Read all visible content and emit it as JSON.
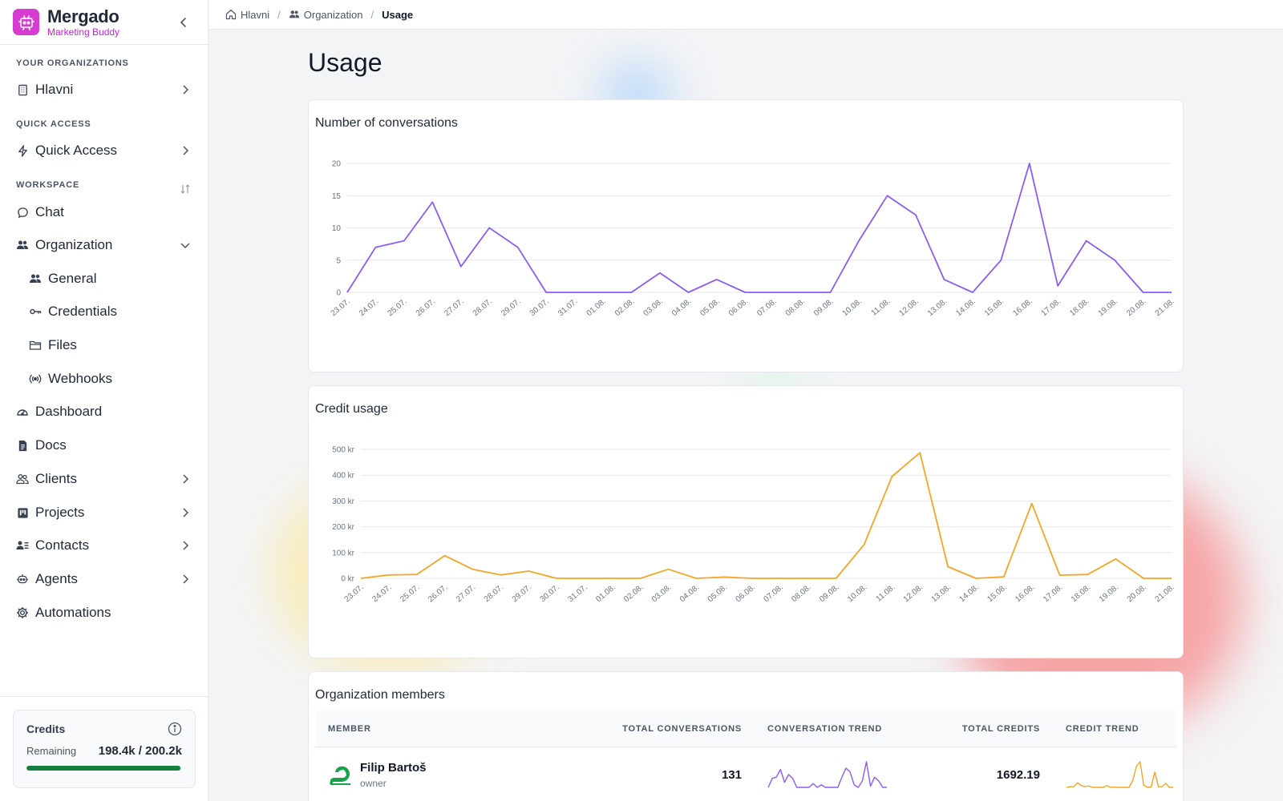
{
  "brand": {
    "name": "Mergado",
    "subtitle": "Marketing Buddy"
  },
  "sidebar": {
    "sections": {
      "organizations": "YOUR ORGANIZATIONS",
      "quick_access": "QUICK ACCESS",
      "workspace": "WORKSPACE"
    },
    "items": {
      "hlavni": "Hlavni",
      "quick_access": "Quick Access",
      "chat": "Chat",
      "organization": "Organization",
      "general": "General",
      "credentials": "Credentials",
      "files": "Files",
      "webhooks": "Webhooks",
      "dashboard": "Dashboard",
      "docs": "Docs",
      "clients": "Clients",
      "projects": "Projects",
      "contacts": "Contacts",
      "agents": "Agents",
      "automations": "Automations"
    },
    "credits": {
      "title": "Credits",
      "remaining_label": "Remaining",
      "remaining_value": "198.4k / 200.2k",
      "fraction": 0.991
    }
  },
  "breadcrumb": [
    "Hlavni",
    "Organization",
    "Usage"
  ],
  "page": {
    "title": "Usage"
  },
  "colors": {
    "accent": "#d63ccf",
    "conversations": "#8b5cf6",
    "credits": "#f5a524",
    "progress": "#15803d"
  },
  "chart_data": [
    {
      "type": "line",
      "title": "Number of conversations",
      "categories": [
        "23.07.",
        "24.07.",
        "25.07.",
        "26.07.",
        "27.07.",
        "28.07.",
        "29.07.",
        "30.07.",
        "31.07.",
        "01.08.",
        "02.08.",
        "03.08.",
        "04.08.",
        "05.08.",
        "06.08.",
        "07.08.",
        "08.08.",
        "09.08.",
        "10.08.",
        "11.08.",
        "12.08.",
        "13.08.",
        "14.08.",
        "15.08.",
        "16.08.",
        "17.08.",
        "18.08.",
        "19.08.",
        "20.08.",
        "21.08."
      ],
      "values": [
        0,
        7,
        8,
        14,
        4,
        10,
        7,
        0,
        0,
        0,
        0,
        3,
        0,
        2,
        0,
        0,
        0,
        0,
        8,
        15,
        12,
        2,
        0,
        5,
        20,
        1,
        8,
        5,
        0,
        0
      ],
      "ylim": [
        0,
        20
      ],
      "yticks": [
        {
          "v": 0,
          "label": "0"
        },
        {
          "v": 5,
          "label": "5"
        },
        {
          "v": 10,
          "label": "10"
        },
        {
          "v": 15,
          "label": "15"
        },
        {
          "v": 20,
          "label": "20"
        }
      ],
      "grid": true
    },
    {
      "type": "line",
      "title": "Credit usage",
      "categories": [
        "23.07.",
        "24.07.",
        "25.07.",
        "26.07.",
        "27.07.",
        "28.07.",
        "29.07.",
        "30.07.",
        "31.07.",
        "01.08.",
        "02.08.",
        "03.08.",
        "04.08.",
        "05.08.",
        "06.08.",
        "07.08.",
        "08.08.",
        "09.08.",
        "10.08.",
        "11.08.",
        "12.08.",
        "13.08.",
        "14.08.",
        "15.08.",
        "16.08.",
        "17.08.",
        "18.08.",
        "19.08.",
        "20.08.",
        "21.08."
      ],
      "values": [
        0,
        13,
        15,
        88,
        35,
        13,
        28,
        0,
        0,
        0,
        0,
        35,
        0,
        5,
        0,
        0,
        0,
        0,
        130,
        395,
        487,
        45,
        0,
        6,
        290,
        12,
        15,
        75,
        0,
        0
      ],
      "ylim": [
        0,
        500
      ],
      "yticks": [
        {
          "v": 0,
          "label": "0 kr"
        },
        {
          "v": 100,
          "label": "100 kr"
        },
        {
          "v": 200,
          "label": "200 kr"
        },
        {
          "v": 300,
          "label": "300 kr"
        },
        {
          "v": 400,
          "label": "400 kr"
        },
        {
          "v": 500,
          "label": "500 kr"
        }
      ],
      "grid": true
    }
  ],
  "members": {
    "title": "Organization members",
    "columns": [
      "MEMBER",
      "TOTAL CONVERSATIONS",
      "CONVERSATION TREND",
      "TOTAL CREDITS",
      "CREDIT TREND"
    ],
    "rows": [
      {
        "name": "Filip Bartoš",
        "role": "owner",
        "total_conversations": "131",
        "total_credits": "1692.19",
        "conversation_trend": [
          0,
          7,
          8,
          14,
          4,
          10,
          7,
          0,
          0,
          0,
          0,
          3,
          0,
          2,
          0,
          0,
          0,
          0,
          8,
          15,
          12,
          2,
          0,
          5,
          20,
          1,
          8,
          5,
          0,
          0
        ],
        "credit_trend": [
          0,
          13,
          15,
          88,
          35,
          13,
          28,
          0,
          0,
          0,
          0,
          35,
          0,
          5,
          0,
          0,
          0,
          0,
          130,
          395,
          487,
          45,
          0,
          6,
          290,
          12,
          15,
          75,
          0,
          0
        ]
      }
    ]
  }
}
